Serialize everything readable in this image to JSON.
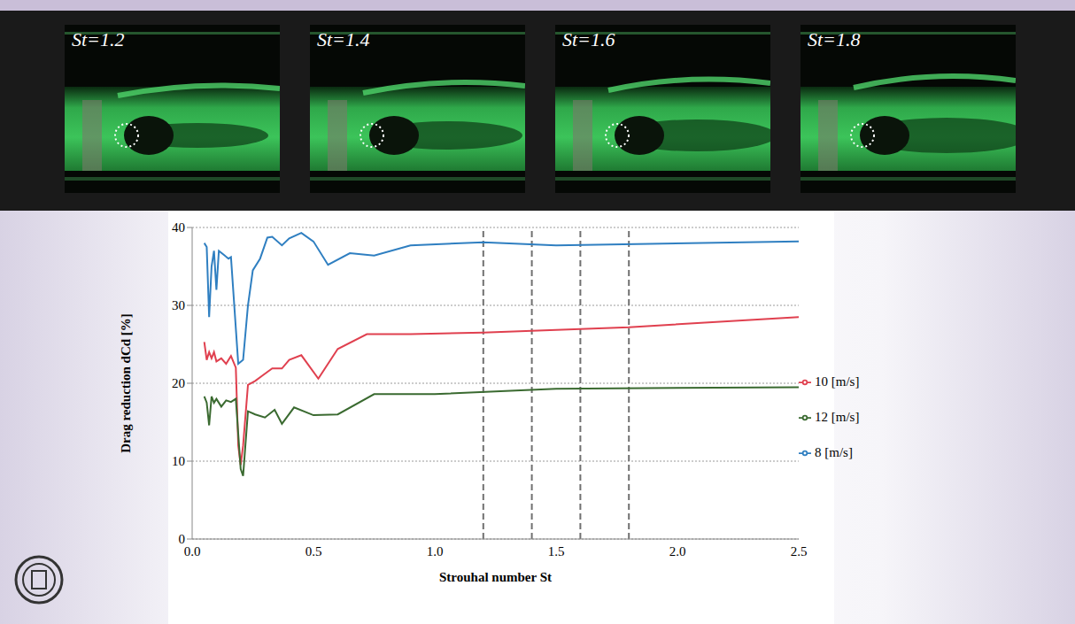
{
  "panels": [
    "St=1.2",
    "St=1.4",
    "St=1.6",
    "St=1.8"
  ],
  "chart_data": {
    "type": "line",
    "x_label": "Strouhal number St",
    "y_label": "Drag reduction dCd [%]",
    "xlim": [
      0,
      2.5
    ],
    "xticks": [
      {
        "value": 0,
        "label": "0.0"
      },
      0.5,
      {
        "value": 1,
        "label": "1.0"
      },
      1.5,
      {
        "value": 2,
        "label": "2.0"
      },
      2.5
    ],
    "ylim": [
      0,
      40
    ],
    "yticks": [
      0,
      10,
      20,
      30,
      40
    ],
    "grid": true,
    "legend": "right",
    "reference_lines": [
      1.2,
      1.4,
      1.6,
      1.8
    ],
    "series": [
      {
        "name": "8 [m/s]",
        "color": "#2f7fc1",
        "x": [
          0.05,
          0.06,
          0.07,
          0.08,
          0.09,
          0.1,
          0.11,
          0.13,
          0.15,
          0.16,
          0.19,
          0.21,
          0.23,
          0.25,
          0.28,
          0.31,
          0.33,
          0.37,
          0.4,
          0.45,
          0.5,
          0.56,
          0.65,
          0.75,
          0.9,
          1.2,
          1.5,
          2.5
        ],
        "values": [
          38,
          37.5,
          28.5,
          35,
          37,
          32,
          37,
          36.5,
          36,
          36.2,
          22.5,
          23,
          30,
          34.5,
          36,
          38.7,
          38.8,
          37.7,
          38.6,
          39.3,
          38.2,
          35.2,
          36.7,
          36.4,
          37.7,
          38.1,
          37.7,
          38.2
        ]
      },
      {
        "name": "10 [m/s]",
        "color": "#e0404f",
        "x": [
          0.05,
          0.06,
          0.07,
          0.08,
          0.09,
          0.1,
          0.12,
          0.14,
          0.16,
          0.18,
          0.19,
          0.2,
          0.21,
          0.23,
          0.26,
          0.29,
          0.33,
          0.37,
          0.4,
          0.45,
          0.52,
          0.6,
          0.72,
          0.9,
          1.2,
          1.8,
          2.5
        ],
        "values": [
          25.3,
          23,
          24,
          23.2,
          24,
          22.8,
          23.2,
          22.5,
          23.5,
          22,
          12,
          9.5,
          12,
          19.8,
          20.3,
          21,
          21.9,
          21.9,
          23,
          23.6,
          20.6,
          24.4,
          26.3,
          26.3,
          26.5,
          27.2,
          28.5
        ]
      },
      {
        "name": "12 [m/s]",
        "color": "#3a6a30",
        "x": [
          0.05,
          0.06,
          0.07,
          0.08,
          0.09,
          0.1,
          0.12,
          0.14,
          0.16,
          0.18,
          0.2,
          0.21,
          0.23,
          0.26,
          0.3,
          0.34,
          0.37,
          0.42,
          0.5,
          0.6,
          0.75,
          1.0,
          1.5,
          2.5
        ],
        "values": [
          18.3,
          17.5,
          14.6,
          18.3,
          17.5,
          18,
          17,
          17.8,
          17.6,
          18,
          9,
          8.1,
          16.4,
          16,
          15.6,
          16.6,
          14.8,
          16.9,
          15.9,
          16,
          18.6,
          18.6,
          19.3,
          19.5
        ]
      }
    ]
  }
}
